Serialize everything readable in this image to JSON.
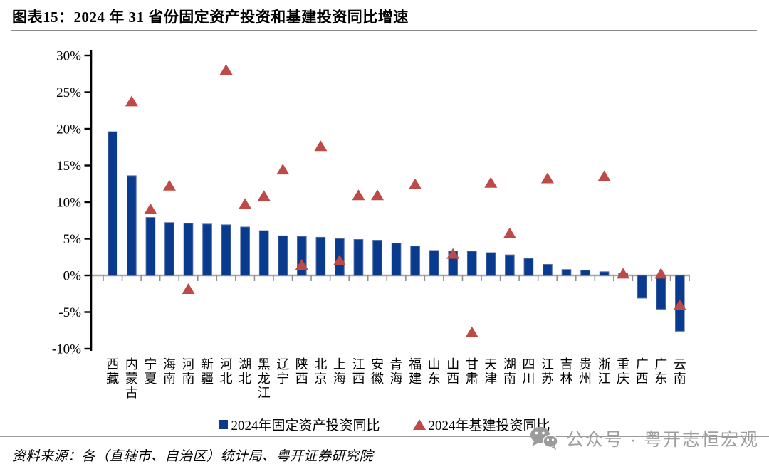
{
  "title": "图表15：2024 年 31 省份固定资产投资和基建投资同比增速",
  "source": "资料来源：各（直辖市、自治区）统计局、粤开证券研究院",
  "watermark": {
    "icon": "wechat-icon",
    "text": "公众号 · 粤开志恒宏观"
  },
  "legend": {
    "fai": "2024年固定资产投资同比",
    "infra": "2024年基建投资同比"
  },
  "colors": {
    "bar": "#083a8d",
    "bar_border": "#4a67a4",
    "triangle": "#bd4a47",
    "axis": "#000000",
    "zero_line": "#a8a8a8",
    "x_tick": "#909090",
    "watermark": "#9e9e9e"
  },
  "chart_data": {
    "type": "bar",
    "title": "2024年31省份固定资产投资和基建投资同比增速",
    "categories": [
      "西藏",
      "内蒙古",
      "宁夏",
      "海南",
      "河南",
      "新疆",
      "河北",
      "湖北",
      "黑龙江",
      "辽宁",
      "陕西",
      "北京",
      "上海",
      "江西",
      "安徽",
      "青海",
      "福建",
      "山东",
      "山西",
      "甘肃",
      "天津",
      "湖南",
      "四川",
      "江苏",
      "吉林",
      "贵州",
      "浙江",
      "重庆",
      "广西",
      "广东",
      "云南"
    ],
    "series": [
      {
        "name": "2024年固定资产投资同比",
        "type": "bar",
        "values": [
          19.6,
          13.6,
          7.9,
          7.2,
          7.1,
          7.0,
          6.9,
          6.6,
          6.1,
          5.4,
          5.3,
          5.2,
          5.0,
          4.9,
          4.8,
          4.4,
          4.0,
          3.4,
          3.3,
          3.3,
          3.1,
          2.8,
          2.3,
          1.5,
          0.8,
          0.7,
          0.5,
          0.3,
          -3.1,
          -4.6,
          -7.6
        ]
      },
      {
        "name": "2024年基建投资同比",
        "type": "scatter-triangle",
        "values": [
          null,
          23.8,
          9.1,
          12.3,
          -1.8,
          null,
          28.1,
          9.8,
          10.9,
          14.5,
          1.5,
          17.7,
          2.1,
          11.0,
          11.0,
          null,
          12.5,
          null,
          3.0,
          -7.7,
          12.7,
          5.8,
          null,
          13.3,
          null,
          null,
          13.6,
          0.3,
          null,
          0.3,
          -4.0
        ]
      }
    ],
    "y_ticks": [
      "30%",
      "25%",
      "20%",
      "15%",
      "10%",
      "5%",
      "0%",
      "-5%",
      "-10%"
    ],
    "ylim": [
      -10,
      30
    ],
    "y_step": 5,
    "xlabel": "",
    "ylabel": "",
    "grid": false,
    "legend_position": "bottom"
  }
}
